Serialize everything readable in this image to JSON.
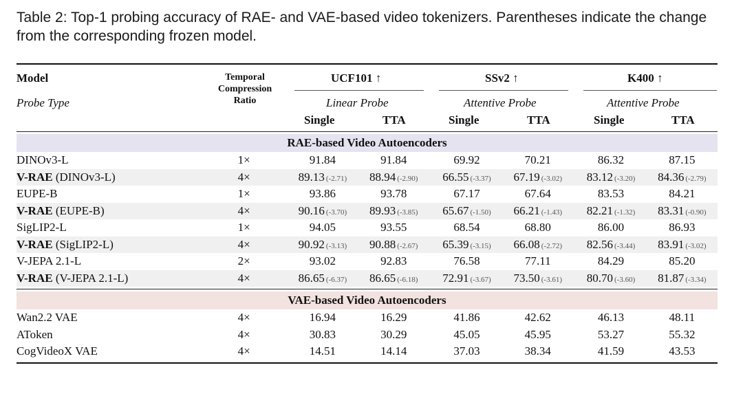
{
  "caption": "Table 2: Top-1 probing accuracy of RAE- and VAE-based video tokenizers. Parentheses indicate the change from the corresponding frozen model.",
  "header": {
    "model": "Model",
    "probe_type": "Probe Type",
    "tcr_1": "Temporal",
    "tcr_2": "Compression",
    "tcr_3": "Ratio",
    "ucf": "UCF101 ↑",
    "ssv2": "SSv2 ↑",
    "k400": "K400 ↑",
    "probe_ucf": "Linear Probe",
    "probe_ssv2": "Attentive Probe",
    "probe_k400": "Attentive Probe",
    "single": "Single",
    "tta": "TTA"
  },
  "sections": {
    "rae": "RAE-based Video Autoencoders",
    "vae": "VAE-based Video Autoencoders"
  },
  "rae_rows": [
    {
      "prefix": "",
      "name": "DINOv3-L",
      "ratio": "1×",
      "v": [
        "91.84",
        "91.84",
        "69.92",
        "70.21",
        "86.32",
        "87.15"
      ],
      "d": [
        "",
        "",
        "",
        "",
        "",
        ""
      ]
    },
    {
      "prefix": "V-RAE",
      "name": " (DINOv3-L)",
      "ratio": "4×",
      "v": [
        "89.13",
        "88.94",
        "66.55",
        "67.19",
        "83.12",
        "84.36"
      ],
      "d": [
        "(-2.71)",
        "(-2.90)",
        "(-3.37)",
        "(-3.02)",
        "(-3.20)",
        "(-2.79)"
      ]
    },
    {
      "prefix": "",
      "name": "EUPE-B",
      "ratio": "1×",
      "v": [
        "93.86",
        "93.78",
        "67.17",
        "67.64",
        "83.53",
        "84.21"
      ],
      "d": [
        "",
        "",
        "",
        "",
        "",
        ""
      ]
    },
    {
      "prefix": "V-RAE",
      "name": " (EUPE-B)",
      "ratio": "4×",
      "v": [
        "90.16",
        "89.93",
        "65.67",
        "66.21",
        "82.21",
        "83.31"
      ],
      "d": [
        "(-3.70)",
        "(-3.85)",
        "(-1.50)",
        "(-1.43)",
        "(-1.32)",
        "(-0.90)"
      ]
    },
    {
      "prefix": "",
      "name": "SigLIP2-L",
      "ratio": "1×",
      "v": [
        "94.05",
        "93.55",
        "68.54",
        "68.80",
        "86.00",
        "86.93"
      ],
      "d": [
        "",
        "",
        "",
        "",
        "",
        ""
      ]
    },
    {
      "prefix": "V-RAE",
      "name": " (SigLIP2-L)",
      "ratio": "4×",
      "v": [
        "90.92",
        "90.88",
        "65.39",
        "66.08",
        "82.56",
        "83.91"
      ],
      "d": [
        "(-3.13)",
        "(-2.67)",
        "(-3.15)",
        "(-2.72)",
        "(-3.44)",
        "(-3.02)"
      ]
    },
    {
      "prefix": "",
      "name": "V-JEPA 2.1-L",
      "ratio": "2×",
      "v": [
        "93.02",
        "92.83",
        "76.58",
        "77.11",
        "84.29",
        "85.20"
      ],
      "d": [
        "",
        "",
        "",
        "",
        "",
        ""
      ]
    },
    {
      "prefix": "V-RAE",
      "name": " (V-JEPA 2.1-L)",
      "ratio": "4×",
      "v": [
        "86.65",
        "86.65",
        "72.91",
        "73.50",
        "80.70",
        "81.87"
      ],
      "d": [
        "(-6.37)",
        "(-6.18)",
        "(-3.67)",
        "(-3.61)",
        "(-3.60)",
        "(-3.34)"
      ]
    }
  ],
  "vae_rows": [
    {
      "prefix": "",
      "name": "Wan2.2 VAE",
      "ratio": "4×",
      "v": [
        "16.94",
        "16.29",
        "41.86",
        "42.62",
        "46.13",
        "48.11"
      ],
      "d": [
        "",
        "",
        "",
        "",
        "",
        ""
      ]
    },
    {
      "prefix": "",
      "name": "AToken",
      "ratio": "4×",
      "v": [
        "30.83",
        "30.29",
        "45.05",
        "45.95",
        "53.27",
        "55.32"
      ],
      "d": [
        "",
        "",
        "",
        "",
        "",
        ""
      ]
    },
    {
      "prefix": "",
      "name": "CogVideoX VAE",
      "ratio": "4×",
      "v": [
        "14.51",
        "14.14",
        "37.03",
        "38.34",
        "41.59",
        "43.53"
      ],
      "d": [
        "",
        "",
        "",
        "",
        "",
        ""
      ]
    }
  ]
}
